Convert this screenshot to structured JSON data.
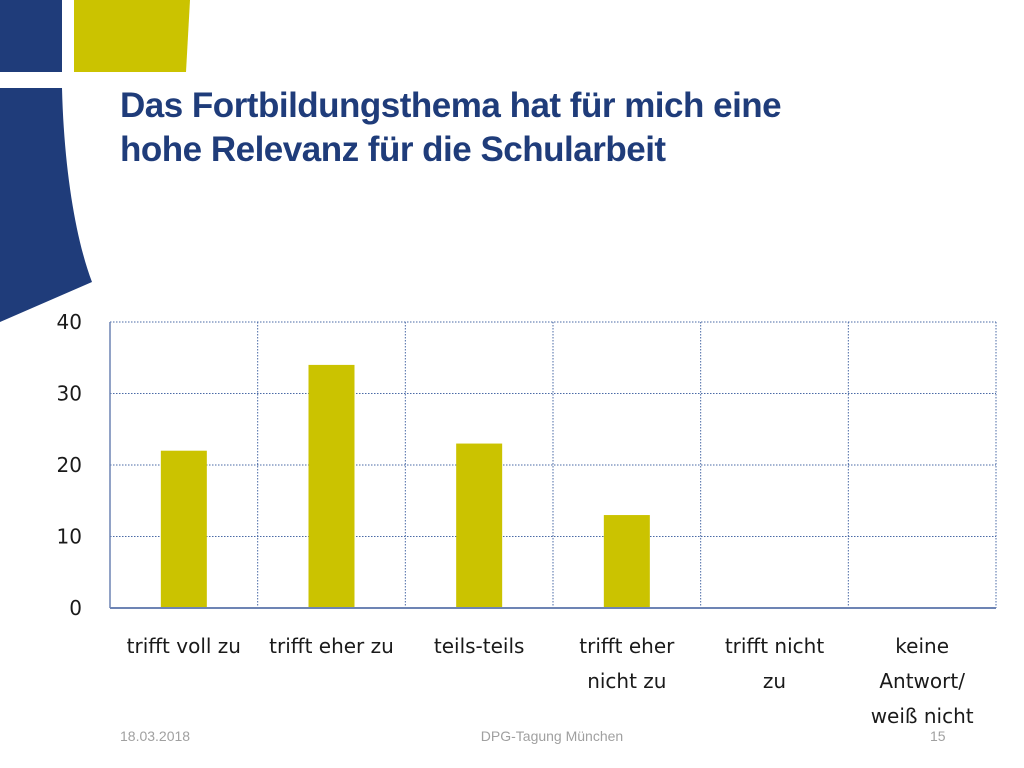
{
  "slide": {
    "title_lines": [
      "Das Fortbildungsthema hat für mich eine",
      "hohe Relevanz für die Schularbeit"
    ],
    "footer_date": "18.03.2018",
    "footer_center": "DPG-Tagung München",
    "page_number": "15"
  },
  "colors": {
    "bar": "#cbc300",
    "title": "#1f3c7a",
    "deco_blue": "#1f3c7a",
    "deco_yellow": "#cbc300",
    "grid": "#4a6aa6"
  },
  "chart_data": {
    "type": "bar",
    "title": "",
    "xlabel": "",
    "ylabel": "",
    "categories": [
      [
        "trifft voll zu"
      ],
      [
        "trifft eher zu"
      ],
      [
        "teils-teils"
      ],
      [
        "trifft eher",
        "nicht zu"
      ],
      [
        "trifft nicht",
        "zu"
      ],
      [
        "keine",
        "Antwort/",
        "weiß nicht"
      ]
    ],
    "values": [
      22,
      34,
      23,
      13,
      0,
      0
    ],
    "ylim": [
      0,
      40
    ],
    "yticks": [
      0,
      10,
      20,
      30,
      40
    ],
    "grid": true,
    "legend": "none"
  }
}
